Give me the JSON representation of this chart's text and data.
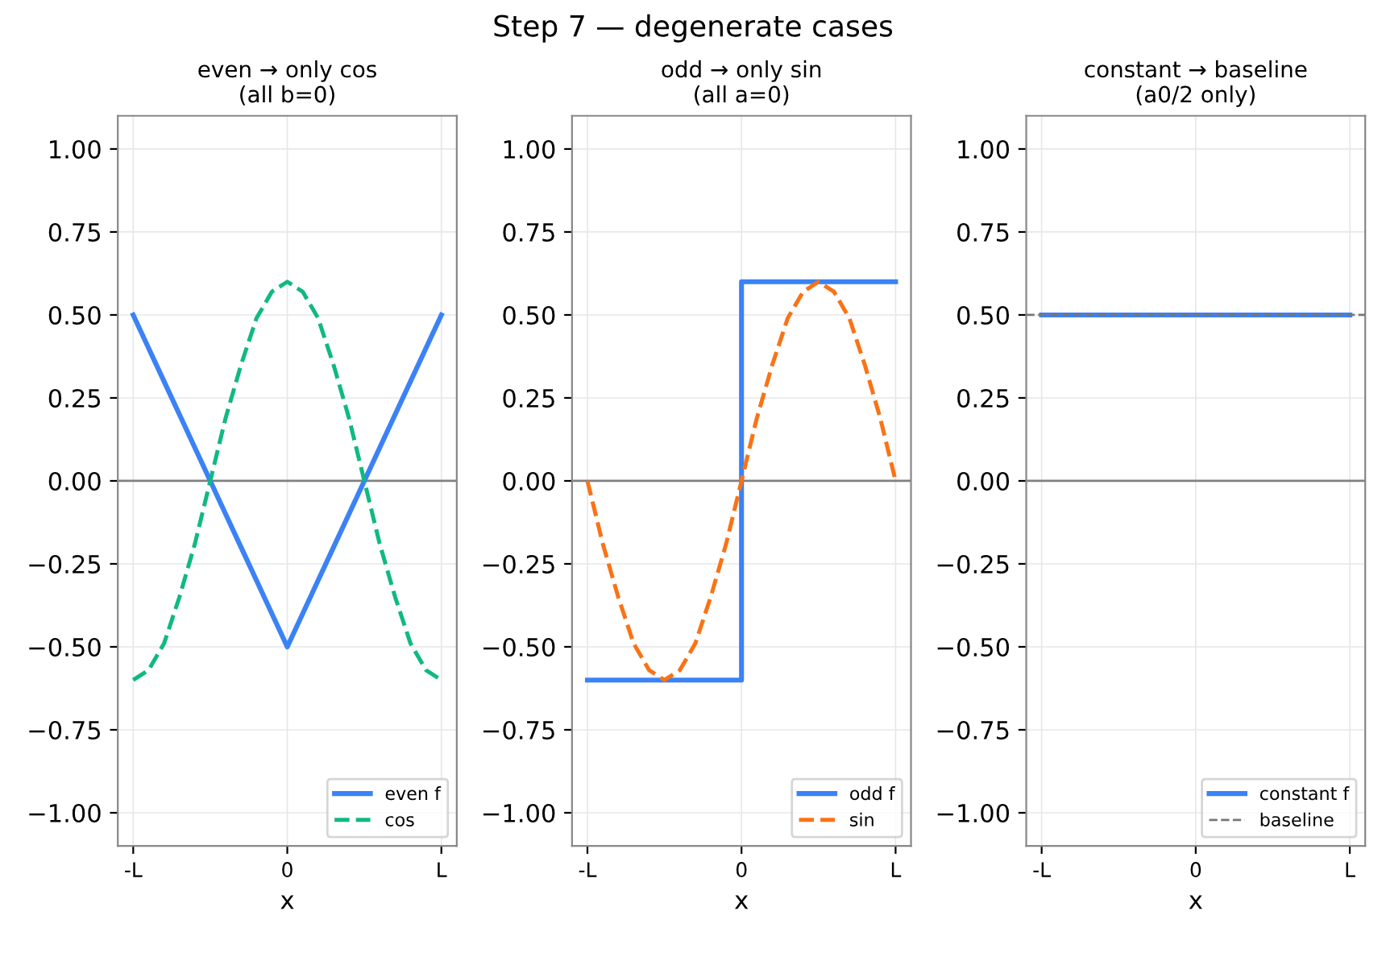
{
  "chart_data": [
    {
      "type": "line",
      "title": "even → only cos\n(all b=0)",
      "xlabel": "x",
      "categories": [
        "-L",
        null,
        null,
        null,
        null,
        null,
        null,
        null,
        null,
        null,
        "0",
        null,
        null,
        null,
        null,
        null,
        null,
        null,
        null,
        null,
        "L"
      ],
      "ylim": [
        -1.1,
        1.1
      ],
      "yticks": [
        {
          "value": -1,
          "label": "−1.00"
        },
        {
          "value": -0.75,
          "label": "−0.75"
        },
        {
          "value": -0.5,
          "label": "−0.50"
        },
        {
          "value": -0.25,
          "label": "−0.25"
        },
        {
          "value": 0,
          "label": "0.00"
        },
        {
          "value": 0.25,
          "label": "0.25"
        },
        {
          "value": 0.5,
          "label": "0.50"
        },
        {
          "value": 0.75,
          "label": "0.75"
        },
        {
          "value": 1,
          "label": "1.00"
        }
      ],
      "grid": true,
      "legend": "bottom right",
      "ref_lines": [
        {
          "axis": "y",
          "value": 0,
          "color": "#808080",
          "line_style": "solid"
        }
      ],
      "series": [
        {
          "name": "even f",
          "color": "#3b82f6",
          "line_style": "solid",
          "values": [
            0.5,
            0.4,
            0.3,
            0.2,
            0.1,
            0,
            -0.1,
            -0.2,
            -0.3,
            -0.4,
            -0.5,
            -0.4,
            -0.3,
            -0.2,
            -0.1,
            0,
            0.1,
            0.2,
            0.3,
            0.4,
            0.5
          ]
        },
        {
          "name": "cos",
          "color": "#10b981",
          "line_style": "dashed",
          "values": [
            -0.6,
            -0.57,
            -0.49,
            -0.35,
            -0.19,
            0,
            0.19,
            0.35,
            0.49,
            0.57,
            0.6,
            0.57,
            0.49,
            0.35,
            0.19,
            0,
            -0.19,
            -0.35,
            -0.49,
            -0.57,
            -0.6
          ]
        }
      ]
    },
    {
      "type": "line",
      "title": "odd → only sin\n(all a=0)",
      "xlabel": "x",
      "annotations": [
        "Step 7 — degenerate cases"
      ],
      "categories": [
        "-L",
        null,
        null,
        null,
        null,
        null,
        null,
        null,
        null,
        null,
        "0",
        null,
        null,
        null,
        null,
        null,
        null,
        null,
        null,
        null,
        "L"
      ],
      "ylim": [
        -1.1,
        1.1
      ],
      "yticks": [
        {
          "value": -1,
          "label": "−1.00"
        },
        {
          "value": -0.75,
          "label": "−0.75"
        },
        {
          "value": -0.5,
          "label": "−0.50"
        },
        {
          "value": -0.25,
          "label": "−0.25"
        },
        {
          "value": 0,
          "label": "0.00"
        },
        {
          "value": 0.25,
          "label": "0.25"
        },
        {
          "value": 0.5,
          "label": "0.50"
        },
        {
          "value": 0.75,
          "label": "0.75"
        },
        {
          "value": 1,
          "label": "1.00"
        }
      ],
      "grid": true,
      "legend": "bottom right",
      "ref_lines": [
        {
          "axis": "y",
          "value": 0,
          "color": "#808080",
          "line_style": "solid"
        }
      ],
      "series": [
        {
          "name": "odd f",
          "type": "step",
          "color": "#3b82f6",
          "line_style": "solid",
          "values": [
            -0.6,
            -0.6,
            -0.6,
            -0.6,
            -0.6,
            -0.6,
            -0.6,
            -0.6,
            -0.6,
            -0.6,
            0.6,
            0.6,
            0.6,
            0.6,
            0.6,
            0.6,
            0.6,
            0.6,
            0.6,
            0.6,
            0.6
          ]
        },
        {
          "name": "sin",
          "color": "#f97316",
          "line_style": "dashed",
          "values": [
            0,
            -0.19,
            -0.35,
            -0.49,
            -0.57,
            -0.6,
            -0.57,
            -0.49,
            -0.35,
            -0.19,
            0,
            0.19,
            0.35,
            0.49,
            0.57,
            0.6,
            0.57,
            0.49,
            0.35,
            0.19,
            0
          ]
        }
      ]
    },
    {
      "type": "line",
      "title": "constant → baseline\n(a0/2 only)",
      "xlabel": "x",
      "categories": [
        "-L",
        null,
        null,
        null,
        null,
        null,
        null,
        null,
        null,
        null,
        "0",
        null,
        null,
        null,
        null,
        null,
        null,
        null,
        null,
        null,
        "L"
      ],
      "ylim": [
        -1.1,
        1.1
      ],
      "yticks": [
        {
          "value": -1,
          "label": "−1.00"
        },
        {
          "value": -0.75,
          "label": "−0.75"
        },
        {
          "value": -0.5,
          "label": "−0.50"
        },
        {
          "value": -0.25,
          "label": "−0.25"
        },
        {
          "value": 0,
          "label": "0.00"
        },
        {
          "value": 0.25,
          "label": "0.25"
        },
        {
          "value": 0.5,
          "label": "0.50"
        },
        {
          "value": 0.75,
          "label": "0.75"
        },
        {
          "value": 1,
          "label": "1.00"
        }
      ],
      "grid": true,
      "legend": "bottom right",
      "ref_lines": [
        {
          "axis": "y",
          "value": 0,
          "color": "#808080",
          "line_style": "solid"
        },
        {
          "axis": "y",
          "value": 0.5,
          "label": "baseline",
          "color": "#777777",
          "line_style": "dashed"
        }
      ],
      "series": [
        {
          "name": "constant f",
          "color": "#3b82f6",
          "line_style": "solid",
          "values": [
            0.5,
            0.5,
            0.5,
            0.5,
            0.5,
            0.5,
            0.5,
            0.5,
            0.5,
            0.5,
            0.5,
            0.5,
            0.5,
            0.5,
            0.5,
            0.5,
            0.5,
            0.5,
            0.5,
            0.5,
            0.5
          ]
        }
      ]
    }
  ]
}
